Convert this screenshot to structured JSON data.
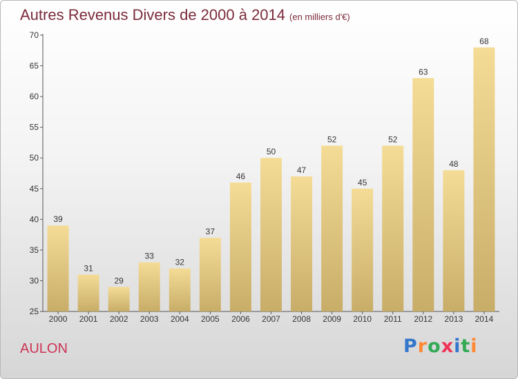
{
  "title": "Autres Revenus Divers de 2000 à 2014",
  "subtitle": "(en milliers d'€)",
  "commune": "AULON",
  "logo": {
    "text": "Proxiti",
    "letter_colors": [
      "#3377cc",
      "#ff8833",
      "#33aa55",
      "#ee3355",
      "#3377cc",
      "#33aa55",
      "#ff8833"
    ]
  },
  "colors": {
    "bar_top": "#f4dc96",
    "bar_bottom": "#c8ad68",
    "title": "#7a2a3a",
    "commune": "#cc3355"
  },
  "chart_data": {
    "type": "bar",
    "categories": [
      "2000",
      "2001",
      "2002",
      "2003",
      "2004",
      "2005",
      "2006",
      "2007",
      "2008",
      "2009",
      "2010",
      "2011",
      "2012",
      "2013",
      "2014"
    ],
    "values": [
      39,
      31,
      29,
      33,
      32,
      37,
      46,
      50,
      47,
      52,
      45,
      52,
      63,
      48,
      68
    ],
    "ylim": [
      25,
      70
    ],
    "yticks": [
      25,
      30,
      35,
      40,
      45,
      50,
      55,
      60,
      65,
      70
    ],
    "grid": false
  }
}
